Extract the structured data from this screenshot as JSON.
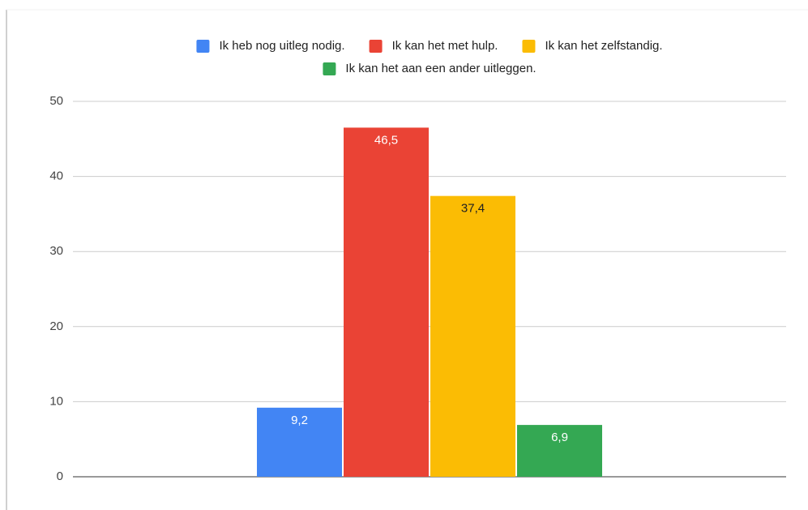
{
  "chart_data": {
    "type": "bar",
    "categories": [
      null
    ],
    "series": [
      {
        "name": "Ik heb nog uitleg nodig.",
        "color": "#4285f4",
        "values": [
          9.2
        ],
        "value_labels": [
          "9,2"
        ]
      },
      {
        "name": "Ik kan het met hulp.",
        "color": "#ea4335",
        "values": [
          46.5
        ],
        "value_labels": [
          "46,5"
        ]
      },
      {
        "name": "Ik kan het zelfstandig.",
        "color": "#fbbc04",
        "values": [
          37.4
        ],
        "value_labels": [
          "37,4"
        ]
      },
      {
        "name": "Ik kan het aan een ander uitleggen.",
        "color": "#34a853",
        "values": [
          6.9
        ],
        "value_labels": [
          "6,9"
        ]
      }
    ],
    "ylim": [
      0,
      50
    ],
    "yticks": [
      0,
      10,
      20,
      30,
      40,
      50
    ],
    "grid": true,
    "legend": "top"
  }
}
